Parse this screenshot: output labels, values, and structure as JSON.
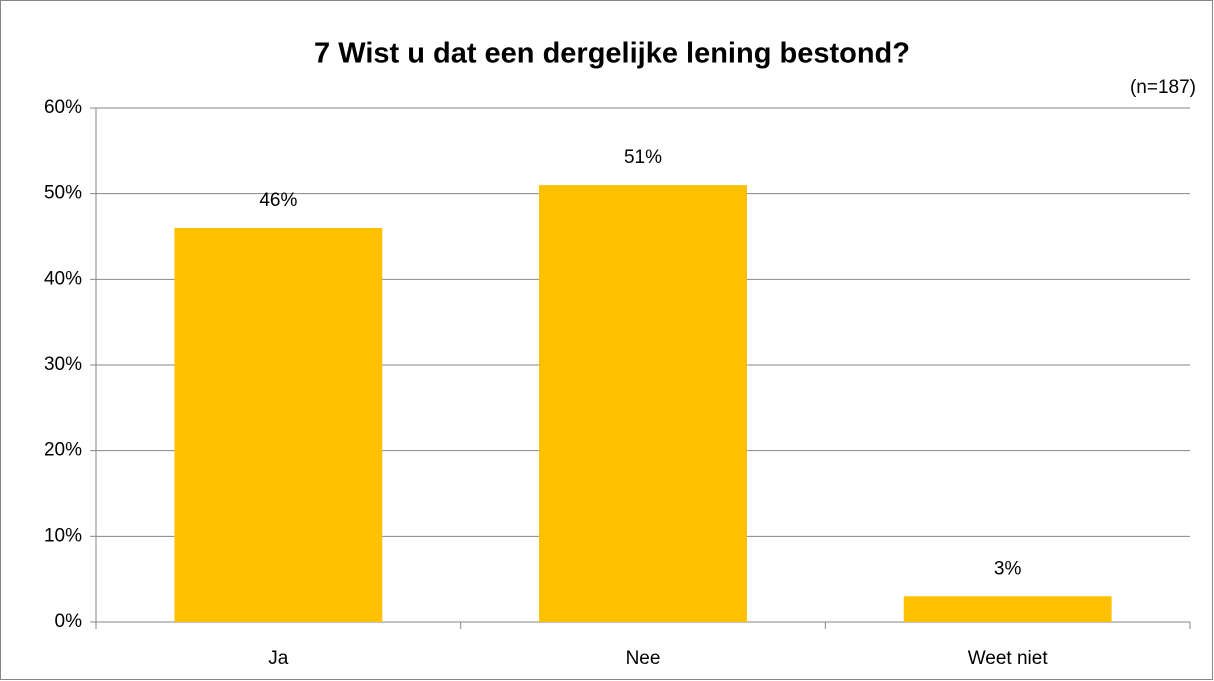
{
  "chart_data": {
    "type": "bar",
    "title": "7 Wist u dat een dergelijke lening bestond?",
    "annotation": "(n=187)",
    "categories": [
      "Ja",
      "Nee",
      "Weet niet"
    ],
    "values": [
      46,
      51,
      3
    ],
    "value_labels": [
      "46%",
      "51%",
      "3%"
    ],
    "color": "#ffc000",
    "ylim": [
      0,
      60
    ],
    "yticks": [
      {
        "value": 0,
        "label": "0%"
      },
      {
        "value": 10,
        "label": "10%"
      },
      {
        "value": 20,
        "label": "20%"
      },
      {
        "value": 30,
        "label": "30%"
      },
      {
        "value": 40,
        "label": "40%"
      },
      {
        "value": 50,
        "label": "50%"
      },
      {
        "value": 60,
        "label": "60%"
      }
    ],
    "grid": true
  }
}
